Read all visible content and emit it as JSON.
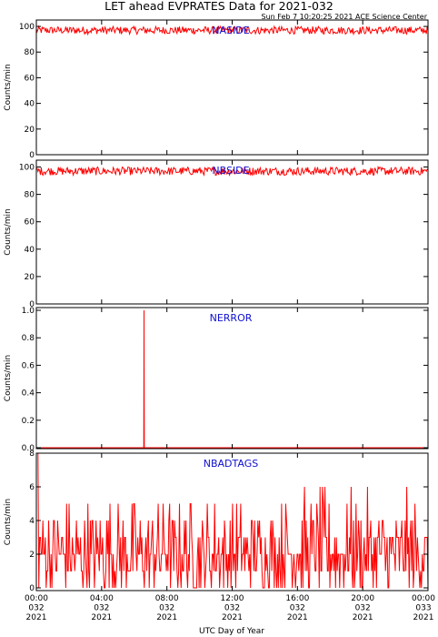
{
  "header": {
    "title": "LET ahead EVPRATES Data for 2021-032",
    "timestamp": "Sun Feb  7 10:20:25 2021 ACE Science Center"
  },
  "xaxis": {
    "label": "UTC Day of Year",
    "range": [
      0,
      24
    ],
    "ticks": [
      {
        "hour": 0,
        "time": "00:00",
        "doy": "032",
        "year": "2021"
      },
      {
        "hour": 4,
        "time": "04:00",
        "doy": "032",
        "year": "2021"
      },
      {
        "hour": 8,
        "time": "08:00",
        "doy": "032",
        "year": "2021"
      },
      {
        "hour": 12,
        "time": "12:00",
        "doy": "032",
        "year": "2021"
      },
      {
        "hour": 16,
        "time": "16:00",
        "doy": "032",
        "year": "2021"
      },
      {
        "hour": 20,
        "time": "20:00",
        "doy": "032",
        "year": "2021"
      },
      {
        "hour": 24,
        "time": "00:00",
        "doy": "033",
        "year": "2021"
      }
    ]
  },
  "colors": {
    "data": "#ff0000",
    "panel_label": "#1010d0",
    "axes": "#000000"
  },
  "chart_data": [
    {
      "type": "line",
      "name": "NASIDE",
      "ylabel": "Counts/min",
      "ylim": [
        0,
        105
      ],
      "yticks": [
        0,
        20,
        40,
        60,
        80,
        100
      ],
      "ytick_labels": [
        "0",
        "20",
        "40",
        "60",
        "80",
        "100"
      ],
      "pattern": "noise",
      "mean": 97,
      "amplitude": 3,
      "points": 480
    },
    {
      "type": "line",
      "name": "NBSIDE",
      "ylabel": "Counts/min",
      "ylim": [
        0,
        105
      ],
      "yticks": [
        0,
        20,
        40,
        60,
        80,
        100
      ],
      "ytick_labels": [
        "0",
        "20",
        "40",
        "60",
        "80",
        "100"
      ],
      "pattern": "noise",
      "mean": 97,
      "amplitude": 3,
      "points": 480
    },
    {
      "type": "line",
      "name": "NERROR",
      "ylabel": "Counts/min",
      "ylim": [
        0,
        1
      ],
      "yticks": [
        0,
        0.2,
        0.4,
        0.6,
        0.8,
        1.0
      ],
      "ytick_labels": [
        "0.0",
        "0.2",
        "0.4",
        "0.6",
        "0.8",
        "1.0"
      ],
      "pattern": "spikes",
      "spikes": [
        {
          "hour": 6.6,
          "value": 1
        }
      ]
    },
    {
      "type": "line",
      "name": "NBADTAGS",
      "ylabel": "Counts/min",
      "ylim": [
        0,
        8
      ],
      "yticks": [
        0,
        2,
        4,
        6,
        8
      ],
      "ytick_labels": [
        "0",
        "2",
        "4",
        "6",
        "8"
      ],
      "pattern": "discrete",
      "values_allowed": [
        0,
        1,
        2,
        3,
        4,
        5,
        6
      ],
      "weights": [
        14,
        24,
        26,
        18,
        10,
        5,
        3
      ],
      "start_value": 8,
      "points": 480
    }
  ]
}
